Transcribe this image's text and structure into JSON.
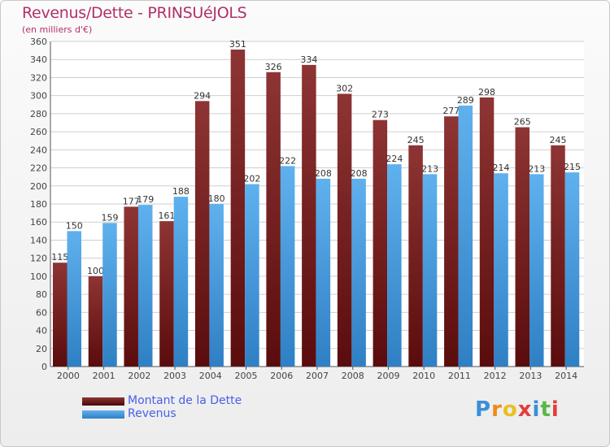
{
  "header": {
    "title": "Revenus/Dette - PRINSUéJOLS",
    "subtitle": "(en milliers d'€)"
  },
  "colors": {
    "debt": "#7a1e1e",
    "debt_light": "#8e3434",
    "revenue": "#4f9fe0",
    "revenue_light": "#5fb1ee",
    "grid": "#cfcfcf",
    "title": "#b0306a"
  },
  "chart_data": {
    "type": "bar",
    "title": "Revenus/Dette - PRINSUéJOLS",
    "subtitle": "(en milliers d'€)",
    "xlabel": "",
    "ylabel": "",
    "ylim": [
      0,
      360
    ],
    "ytick_step": 20,
    "grid": true,
    "legend_position": "bottom-left",
    "categories": [
      "2000",
      "2001",
      "2002",
      "2003",
      "2004",
      "2005",
      "2006",
      "2007",
      "2008",
      "2009",
      "2010",
      "2011",
      "2012",
      "2013",
      "2014"
    ],
    "series": [
      {
        "name": "Montant de la Dette",
        "color": "#7a1e1e",
        "values": [
          115,
          100,
          177,
          161,
          294,
          351,
          326,
          334,
          302,
          273,
          245,
          277,
          298,
          265,
          245
        ]
      },
      {
        "name": "Revenus",
        "color": "#4f9fe0",
        "values": [
          150,
          159,
          179,
          188,
          180,
          202,
          222,
          208,
          208,
          224,
          213,
          289,
          214,
          213,
          215
        ]
      }
    ]
  },
  "legend": {
    "items": [
      {
        "label": "Montant de la Dette",
        "icon": "legend-swatch-debt"
      },
      {
        "label": "Revenus",
        "icon": "legend-swatch-revenue"
      }
    ]
  },
  "brand": {
    "name": "Proxiti",
    "letters": [
      "P",
      "r",
      "o",
      "x",
      "i",
      "t",
      "i"
    ],
    "letter_colors": [
      "#3a8fd8",
      "#f08a1c",
      "#e8c020",
      "#e0403a",
      "#3a8fd8",
      "#58b848",
      "#e0403a"
    ]
  }
}
